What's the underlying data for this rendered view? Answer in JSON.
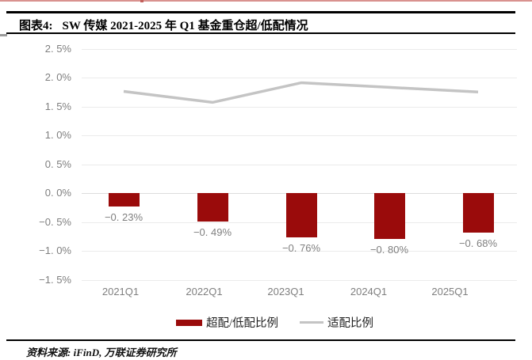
{
  "header": {
    "figure_label": "图表4:",
    "figure_title": "SW 传媒 2021-2025 年 Q1 基金重仓超/低配情况"
  },
  "legend": {
    "bar_label": "超配/低配比例",
    "line_label": "适配比例"
  },
  "footer": {
    "source_text": "资料来源: iFinD, 万联证券研究所"
  },
  "colors": {
    "bar": "#9A0B0B",
    "line": "#C4C4C4",
    "axis_text": "#7F7F7F",
    "gridline": "#EBEBEB",
    "zero_line": "#DCDCDC",
    "rule": "#000000",
    "top_accent": "#D9928F"
  },
  "chart_data": {
    "type": "bar",
    "title": "SW 传媒 2021-2025 年 Q1 基金重仓超/低配情况",
    "categories": [
      "2021Q1",
      "2022Q1",
      "2023Q1",
      "2024Q1",
      "2025Q1"
    ],
    "series": [
      {
        "name": "超配/低配比例",
        "type": "bar",
        "values": [
          -0.23,
          -0.49,
          -0.76,
          -0.8,
          -0.68
        ],
        "labels": [
          "−0. 23%",
          "−0. 49%",
          "−0. 76%",
          "−0. 80%",
          "−0. 68%"
        ]
      },
      {
        "name": "适配比例",
        "type": "line",
        "values": [
          1.76,
          1.57,
          1.91,
          1.83,
          1.75
        ]
      }
    ],
    "y_ticks": [
      {
        "label": "2. 5%",
        "value": 2.5
      },
      {
        "label": "2. 0%",
        "value": 2.0
      },
      {
        "label": "1. 5%",
        "value": 1.5
      },
      {
        "label": "1. 0%",
        "value": 1.0
      },
      {
        "label": "0. 5%",
        "value": 0.5
      },
      {
        "label": "0. 0%",
        "value": 0.0
      },
      {
        "label": "−0. 5%",
        "value": -0.5
      },
      {
        "label": "−1. 0%",
        "value": -1.0
      },
      {
        "label": "−1. 5%",
        "value": -1.5
      }
    ],
    "ylim": [
      -1.5,
      2.5
    ],
    "xlabel": "",
    "ylabel": "",
    "grid": true,
    "legend_position": "bottom"
  }
}
